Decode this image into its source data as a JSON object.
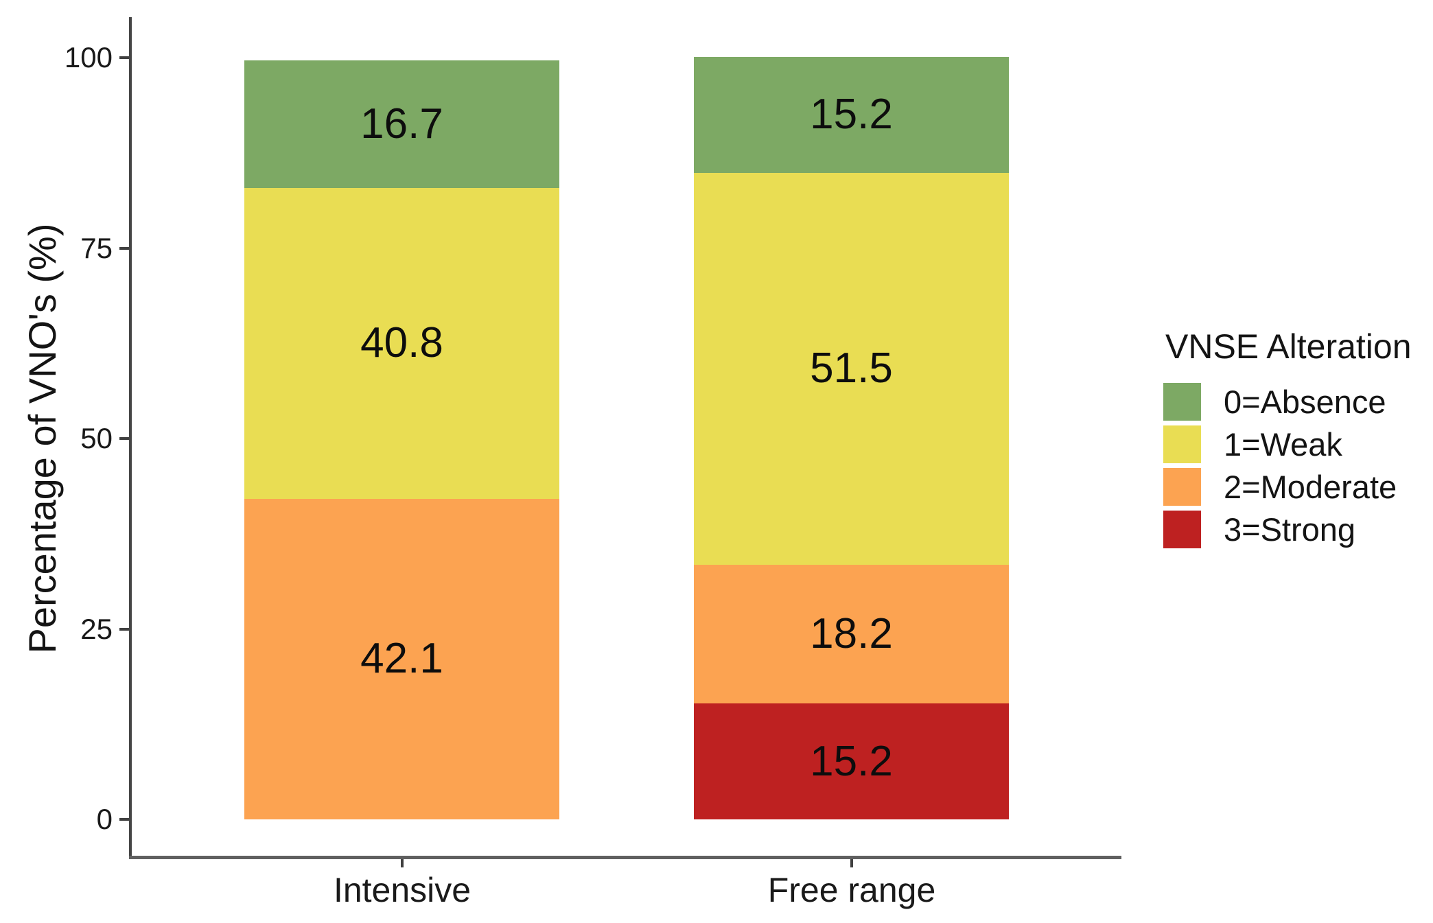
{
  "chart_data": {
    "type": "bar",
    "subtype": "stacked-percentage",
    "title": "",
    "xlabel": "",
    "ylabel": "Percentage of VNO's (%)",
    "ylim": [
      0,
      100
    ],
    "yticks": [
      "0",
      "25",
      "50",
      "75",
      "100"
    ],
    "categories": [
      "Intensive",
      "Free range"
    ],
    "grid": false,
    "legend_position": "right",
    "legend": {
      "title": "VNSE Alteration",
      "entries": [
        {
          "label": "0=Absence",
          "color": "#7DA964"
        },
        {
          "label": "1=Weak",
          "color": "#E9DD53"
        },
        {
          "label": "2=Moderate",
          "color": "#FCA351"
        },
        {
          "label": "3=Strong",
          "color": "#BE2121"
        }
      ]
    },
    "series": [
      {
        "name": "0=Absence",
        "values": [
          16.7,
          15.2
        ]
      },
      {
        "name": "1=Weak",
        "values": [
          40.8,
          51.5
        ]
      },
      {
        "name": "2=Moderate",
        "values": [
          42.1,
          18.2
        ]
      },
      {
        "name": "3=Strong",
        "values": [
          null,
          15.2
        ]
      }
    ],
    "stack_order_bottom_to_top": [
      "3=Strong",
      "2=Moderate",
      "1=Weak",
      "0=Absence"
    ]
  },
  "style": {
    "background": "#FFFFFF",
    "text_color": "#141414",
    "y_axis_line_color": "#454545",
    "x_axis_line_color": "#606060",
    "tick_color": "#404040"
  }
}
